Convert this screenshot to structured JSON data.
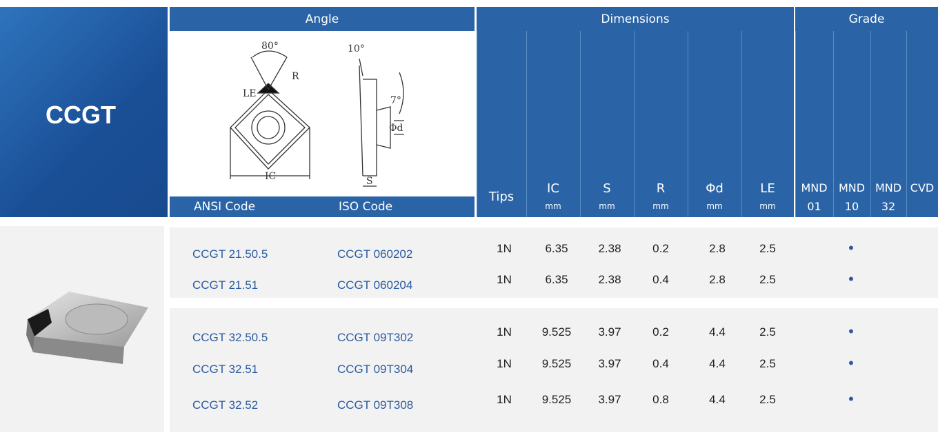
{
  "product": "CCGT",
  "header": {
    "angle": "Angle",
    "dimensions": "Dimensions",
    "grade": "Grade",
    "ansi": "ANSI Code",
    "iso": "ISO Code",
    "columns": [
      {
        "label": "Tips"
      },
      {
        "label": "IC",
        "sub": "mm"
      },
      {
        "label": "S",
        "sub": "mm"
      },
      {
        "label": "R",
        "sub": "mm"
      },
      {
        "label": "Φd",
        "sub": "mm"
      },
      {
        "label": "LE",
        "sub": "mm"
      },
      {
        "label": "MND",
        "sub": "01"
      },
      {
        "label": "MND",
        "sub": "10"
      },
      {
        "label": "MND",
        "sub": "32"
      },
      {
        "label": "CVD"
      }
    ]
  },
  "diagram": {
    "labels": [
      "80°",
      "R",
      "LE",
      "IC",
      "10°",
      "7°",
      "Φd",
      "S"
    ]
  },
  "groups": [
    [
      [
        "CCGT 21.50.5",
        "CCGT 060202",
        "1N",
        "6.35",
        "2.38",
        "0.2",
        "2.8",
        "2.5",
        null,
        "•",
        null,
        null
      ],
      [
        "CCGT 21.51",
        "CCGT 060204",
        "1N",
        "6.35",
        "2.38",
        "0.4",
        "2.8",
        "2.5",
        null,
        "•",
        null,
        null
      ]
    ],
    [
      [
        "CCGT 32.50.5",
        "CCGT 09T302",
        "1N",
        "9.525",
        "3.97",
        "0.2",
        "4.4",
        "2.5",
        null,
        "•",
        null,
        null
      ],
      [
        "CCGT 32.51",
        "CCGT 09T304",
        "1N",
        "9.525",
        "3.97",
        "0.4",
        "4.4",
        "2.5",
        null,
        "•",
        null,
        null
      ],
      [
        "CCGT 32.52",
        "CCGT 09T308",
        "1N",
        "9.525",
        "3.97",
        "0.8",
        "4.4",
        "2.5",
        null,
        "•",
        null,
        null
      ]
    ]
  ]
}
